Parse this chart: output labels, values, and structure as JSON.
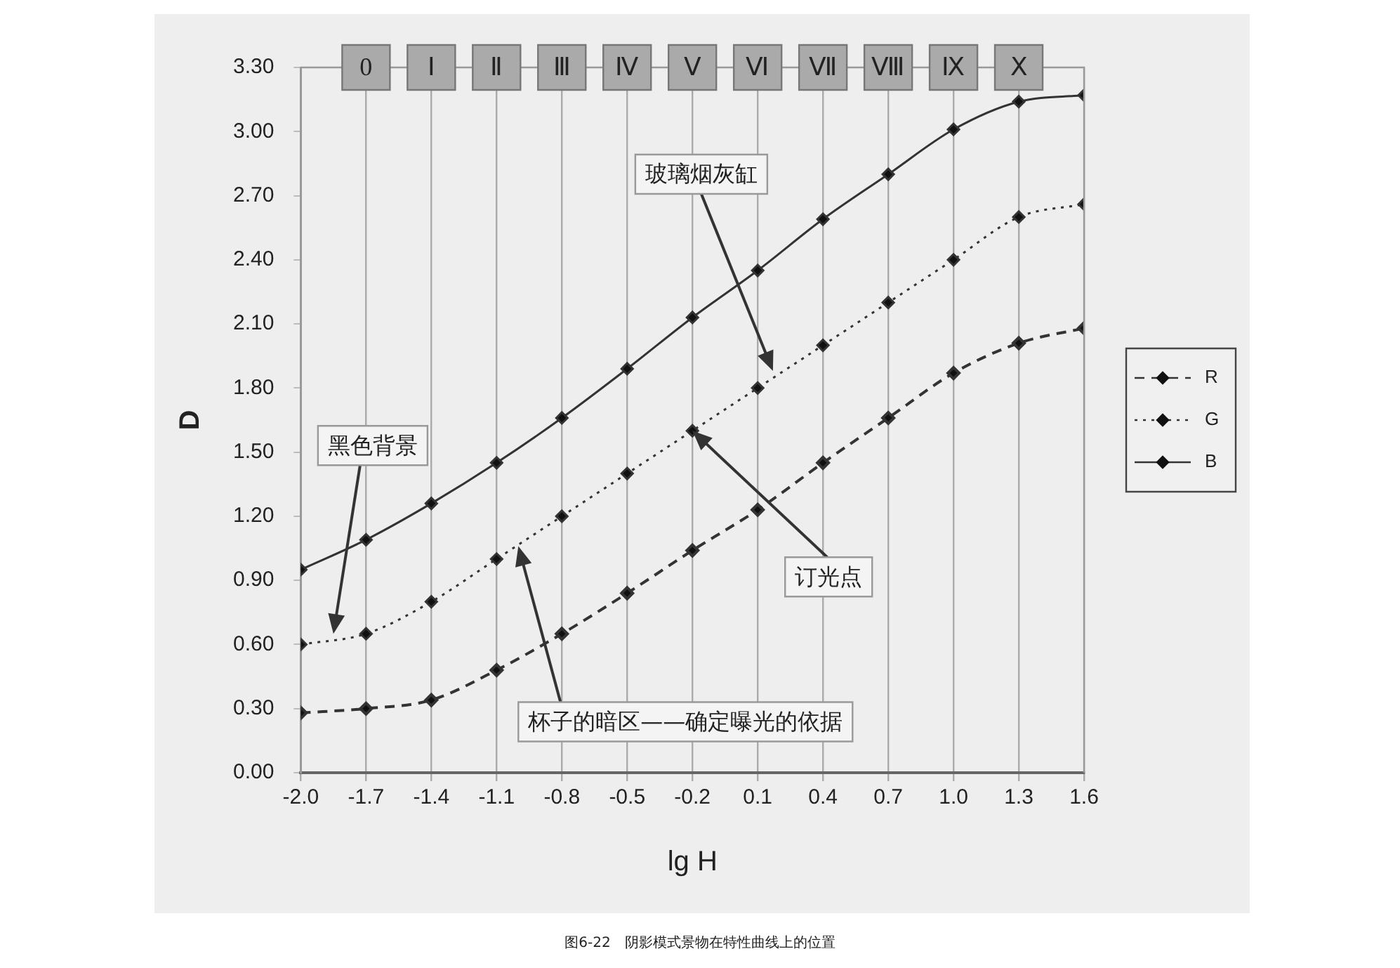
{
  "chart_data": {
    "type": "line",
    "xlabel": "lg H",
    "ylabel": "D",
    "x": [
      -2.0,
      -1.7,
      -1.4,
      -1.1,
      -0.8,
      -0.5,
      -0.2,
      0.1,
      0.4,
      0.7,
      1.0,
      1.3,
      1.6
    ],
    "series": [
      {
        "name": "R",
        "color": "#333333",
        "line_style": "dashed",
        "values": [
          0.28,
          0.3,
          0.34,
          0.48,
          0.65,
          0.84,
          1.04,
          1.23,
          1.45,
          1.66,
          1.87,
          2.01,
          2.08
        ]
      },
      {
        "name": "G",
        "color": "#333333",
        "line_style": "dotted",
        "values": [
          0.6,
          0.65,
          0.8,
          1.0,
          1.2,
          1.4,
          1.6,
          1.8,
          2.0,
          2.2,
          2.4,
          2.6,
          2.66
        ]
      },
      {
        "name": "B",
        "color": "#333333",
        "line_style": "solid",
        "values": [
          0.95,
          1.09,
          1.26,
          1.45,
          1.66,
          1.89,
          2.13,
          2.35,
          2.59,
          2.8,
          3.01,
          3.14,
          3.17
        ]
      }
    ],
    "xlim": [
      -2.0,
      1.6
    ],
    "xticks": [
      {
        "value": -2.0,
        "label": "-2.0"
      },
      -1.7,
      -1.4,
      -1.1,
      -0.8,
      -0.5,
      -0.2,
      0.1,
      0.4,
      0.7,
      {
        "value": 1.0,
        "label": "1.0"
      },
      1.3,
      1.6
    ],
    "ylim": [
      0,
      3.3
    ],
    "yticks": [
      {
        "value": 0,
        "label": "0.00"
      },
      {
        "value": 0.3,
        "label": "0.30"
      },
      {
        "value": 0.6,
        "label": "0.60"
      },
      {
        "value": 0.9,
        "label": "0.90"
      },
      {
        "value": 1.2,
        "label": "1.20"
      },
      {
        "value": 1.5,
        "label": "1.50"
      },
      {
        "value": 1.8,
        "label": "1.80"
      },
      {
        "value": 2.1,
        "label": "2.10"
      },
      {
        "value": 2.4,
        "label": "2.40"
      },
      {
        "value": 2.7,
        "label": "2.70"
      },
      {
        "value": 3.0,
        "label": "3.00"
      },
      {
        "value": 3.3,
        "label": "3.30"
      }
    ],
    "grid": "x",
    "legend": "right",
    "marker": "diamond",
    "annotations": [
      {
        "text": "0",
        "x": -1.7
      },
      {
        "text": "Ⅰ",
        "x": -1.4
      },
      {
        "text": "Ⅱ",
        "x": -1.1
      },
      {
        "text": "Ⅲ",
        "x": -0.8
      },
      {
        "text": "Ⅳ",
        "x": -0.5
      },
      {
        "text": "Ⅴ",
        "x": -0.2
      },
      {
        "text": "Ⅵ",
        "x": 0.1
      },
      {
        "text": "Ⅶ",
        "x": 0.4
      },
      {
        "text": "Ⅷ",
        "x": 0.7
      },
      {
        "text": "Ⅸ",
        "x": 1.0
      },
      {
        "text": "Ⅹ",
        "x": 1.3
      },
      {
        "text": "黑色背景",
        "x": -1.85,
        "y": 0.65
      },
      {
        "text": "玻璃烟灰缸",
        "x": 0.17,
        "y": 1.88
      },
      {
        "text": "订光点",
        "x": -0.2,
        "y": 1.6
      },
      {
        "text": "杯子的暗区——确定曝光的依据",
        "x": -1.0,
        "y": 1.06
      },
      "图6-22　阴影模式景物在特性曲线上的位置"
    ]
  }
}
